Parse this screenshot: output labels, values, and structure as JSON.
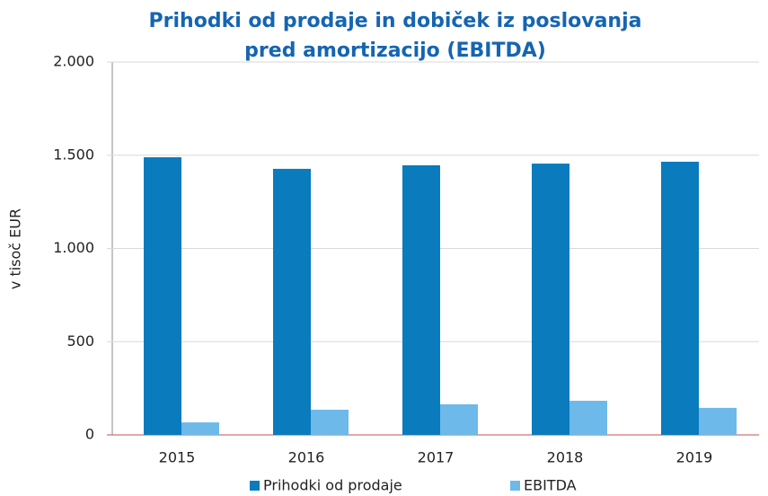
{
  "chart_data": {
    "type": "bar",
    "title": [
      "Prihodki od prodaje in dobiček iz poslovanja",
      "pred amortizacijo (EBITDA)"
    ],
    "y_label": "v tisoč EUR",
    "categories": [
      "2015",
      "2016",
      "2017",
      "2018",
      "2019"
    ],
    "series": [
      {
        "name": "Prihodki od prodaje",
        "color": "#0a7bbd",
        "values": [
          1489,
          1427,
          1446,
          1455,
          1465
        ]
      },
      {
        "name": "EBITDA",
        "color": "#6cb9ea",
        "values": [
          67,
          135,
          164,
          183,
          145
        ]
      }
    ],
    "ylim": [
      0,
      2000
    ],
    "yticks": [
      0,
      500,
      {
        "value": 1000,
        "label": "1.000"
      },
      {
        "value": 1500,
        "label": "1.500"
      },
      {
        "value": 2000,
        "label": "2.000"
      }
    ],
    "grid": true,
    "legend": "bottom"
  }
}
